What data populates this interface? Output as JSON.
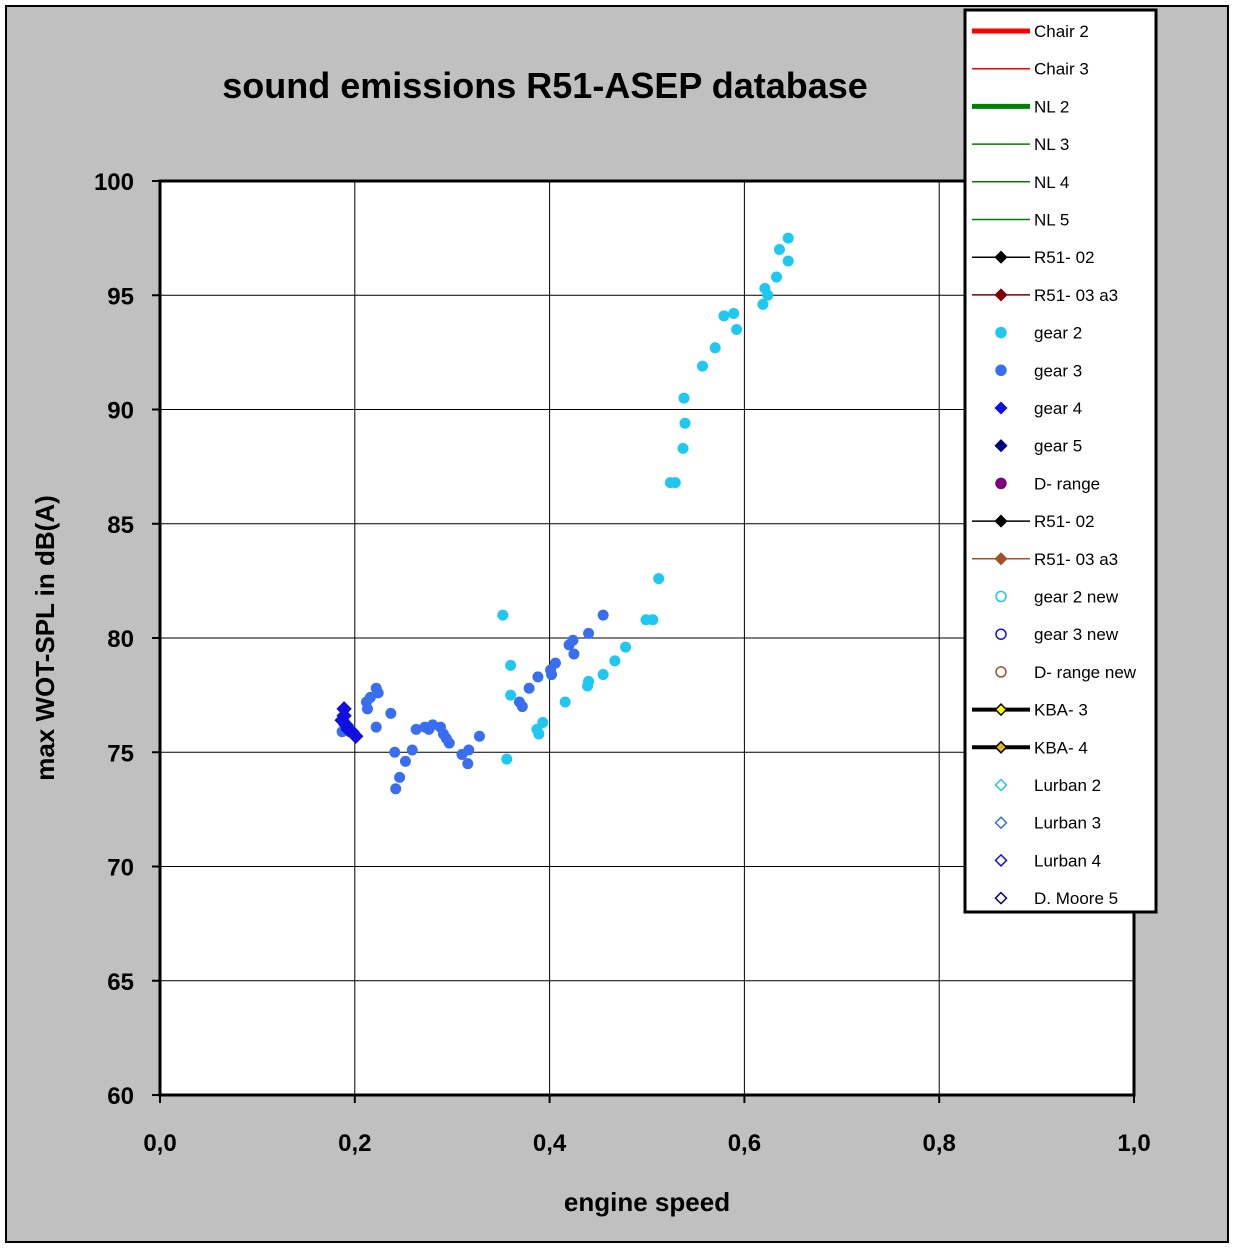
{
  "chart_data": {
    "type": "scatter",
    "title": "sound emissions R51-ASEP database",
    "xlabel": "engine speed",
    "ylabel": "max WOT-SPL in dB(A)",
    "xlim": [
      0,
      1
    ],
    "ylim": [
      60,
      100
    ],
    "x_ticks": [
      "0,0",
      "0,2",
      "0,4",
      "0,6",
      "0,8",
      "1,0"
    ],
    "x_tick_values": [
      0,
      0.2,
      0.4,
      0.6,
      0.8,
      1.0
    ],
    "y_ticks": [
      "60",
      "65",
      "70",
      "75",
      "80",
      "85",
      "90",
      "95",
      "100"
    ],
    "y_tick_values": [
      60,
      65,
      70,
      75,
      80,
      85,
      90,
      95,
      100
    ],
    "grid": true,
    "legend_position": "top-right",
    "colors": {
      "chart_background": "#c0c0c0",
      "plot_background": "#ffffff",
      "gear2": "#1ec8f0",
      "gear3": "#3a6ef0",
      "gear4": "#1010e0"
    },
    "legend": [
      {
        "label": "Chair 2",
        "kind": "line",
        "color": "#ff0000",
        "width": 5,
        "marker": "none"
      },
      {
        "label": "Chair 3",
        "kind": "line",
        "color": "#ff0000",
        "width": 1.5,
        "marker": "none"
      },
      {
        "label": "NL 2",
        "kind": "line",
        "color": "#008000",
        "width": 5,
        "marker": "none"
      },
      {
        "label": "NL 3",
        "kind": "line",
        "color": "#008000",
        "width": 1.5,
        "marker": "none"
      },
      {
        "label": "NL 4",
        "kind": "line",
        "color": "#008000",
        "width": 1.5,
        "marker": "none"
      },
      {
        "label": "NL 5",
        "kind": "line",
        "color": "#008000",
        "width": 1.5,
        "marker": "none"
      },
      {
        "label": "R51- 02",
        "kind": "line",
        "color": "#000000",
        "width": 1.5,
        "marker": "diamond",
        "marker_fill": "#000000",
        "marker_stroke": "#000000"
      },
      {
        "label": "R51- 03 a3",
        "kind": "line",
        "color": "#800000",
        "width": 1.5,
        "marker": "diamond",
        "marker_fill": "#800000",
        "marker_stroke": "#800000"
      },
      {
        "label": "gear 2",
        "kind": "marker",
        "marker": "circle",
        "marker_fill": "#1ec8f0",
        "marker_stroke": "#1ec8f0"
      },
      {
        "label": "gear 3",
        "kind": "marker",
        "marker": "circle",
        "marker_fill": "#3a6ef0",
        "marker_stroke": "#3a6ef0"
      },
      {
        "label": "gear 4",
        "kind": "marker",
        "marker": "diamond",
        "marker_fill": "#1010e0",
        "marker_stroke": "#1010e0"
      },
      {
        "label": "gear 5",
        "kind": "marker",
        "marker": "diamond",
        "marker_fill": "#000080",
        "marker_stroke": "#000080"
      },
      {
        "label": "D- range",
        "kind": "marker",
        "marker": "circle",
        "marker_fill": "#800080",
        "marker_stroke": "#800080"
      },
      {
        "label": "R51- 02",
        "kind": "line",
        "color": "#000000",
        "width": 1.5,
        "marker": "diamond",
        "marker_fill": "#000000",
        "marker_stroke": "#000000"
      },
      {
        "label": "R51- 03 a3",
        "kind": "line",
        "color": "#a0522d",
        "width": 1.5,
        "marker": "diamond",
        "marker_fill": "#a0522d",
        "marker_stroke": "#a0522d"
      },
      {
        "label": "gear 2 new",
        "kind": "marker",
        "marker": "open-circle",
        "marker_fill": "none",
        "marker_stroke": "#1ec8f0"
      },
      {
        "label": "gear 3 new",
        "kind": "marker",
        "marker": "open-circle",
        "marker_fill": "none",
        "marker_stroke": "#1010e0"
      },
      {
        "label": "D- range new",
        "kind": "marker",
        "marker": "open-circle",
        "marker_fill": "none",
        "marker_stroke": "#a0522d"
      },
      {
        "label": "KBA- 3",
        "kind": "line",
        "color": "#000000",
        "width": 4,
        "marker": "diamond",
        "marker_fill": "#ffff00",
        "marker_stroke": "#000000"
      },
      {
        "label": "KBA- 4",
        "kind": "line",
        "color": "#000000",
        "width": 4,
        "marker": "diamond",
        "marker_fill": "#e6b422",
        "marker_stroke": "#000000"
      },
      {
        "label": "Lurban 2",
        "kind": "marker",
        "marker": "open-diamond",
        "marker_fill": "none",
        "marker_stroke": "#1ec8f0"
      },
      {
        "label": "Lurban 3",
        "kind": "marker",
        "marker": "open-diamond",
        "marker_fill": "none",
        "marker_stroke": "#3a6ef0"
      },
      {
        "label": "Lurban 4",
        "kind": "marker",
        "marker": "open-diamond",
        "marker_fill": "none",
        "marker_stroke": "#1010e0"
      },
      {
        "label": "D. Moore 5",
        "kind": "marker",
        "marker": "open-diamond",
        "marker_fill": "none",
        "marker_stroke": "#000080"
      }
    ],
    "series": [
      {
        "name": "gear 2",
        "marker": "circle",
        "color": "#1ec8f0",
        "points": [
          [
            0.645,
            97.5
          ],
          [
            0.636,
            97.0
          ],
          [
            0.645,
            96.5
          ],
          [
            0.633,
            95.8
          ],
          [
            0.621,
            95.3
          ],
          [
            0.624,
            95.0
          ],
          [
            0.619,
            94.6
          ],
          [
            0.589,
            94.2
          ],
          [
            0.579,
            94.1
          ],
          [
            0.592,
            93.5
          ],
          [
            0.57,
            92.7
          ],
          [
            0.557,
            91.9
          ],
          [
            0.538,
            90.5
          ],
          [
            0.539,
            89.4
          ],
          [
            0.537,
            88.3
          ],
          [
            0.524,
            86.8
          ],
          [
            0.529,
            86.8
          ],
          [
            0.512,
            82.6
          ],
          [
            0.499,
            80.8
          ],
          [
            0.506,
            80.8
          ],
          [
            0.478,
            79.6
          ],
          [
            0.467,
            79.0
          ],
          [
            0.455,
            78.4
          ],
          [
            0.44,
            78.1
          ],
          [
            0.439,
            77.9
          ],
          [
            0.416,
            77.2
          ],
          [
            0.352,
            81.0
          ],
          [
            0.36,
            78.8
          ],
          [
            0.36,
            77.5
          ],
          [
            0.356,
            74.7
          ],
          [
            0.393,
            76.3
          ],
          [
            0.387,
            76.0
          ],
          [
            0.389,
            75.8
          ]
        ]
      },
      {
        "name": "gear 3",
        "marker": "circle",
        "color": "#3a6ef0",
        "points": [
          [
            0.455,
            81.0
          ],
          [
            0.44,
            80.2
          ],
          [
            0.424,
            79.9
          ],
          [
            0.42,
            79.7
          ],
          [
            0.425,
            79.3
          ],
          [
            0.406,
            78.9
          ],
          [
            0.401,
            78.6
          ],
          [
            0.402,
            78.4
          ],
          [
            0.388,
            78.3
          ],
          [
            0.379,
            77.8
          ],
          [
            0.369,
            77.2
          ],
          [
            0.372,
            77.0
          ],
          [
            0.328,
            75.7
          ],
          [
            0.317,
            75.1
          ],
          [
            0.31,
            74.9
          ],
          [
            0.316,
            74.5
          ],
          [
            0.222,
            77.8
          ],
          [
            0.224,
            77.6
          ],
          [
            0.216,
            77.4
          ],
          [
            0.212,
            77.2
          ],
          [
            0.213,
            76.9
          ],
          [
            0.237,
            76.7
          ],
          [
            0.222,
            76.1
          ],
          [
            0.28,
            76.2
          ],
          [
            0.272,
            76.1
          ],
          [
            0.288,
            76.1
          ],
          [
            0.263,
            76.0
          ],
          [
            0.276,
            76.0
          ],
          [
            0.291,
            75.8
          ],
          [
            0.294,
            75.6
          ],
          [
            0.297,
            75.4
          ],
          [
            0.241,
            75.0
          ],
          [
            0.259,
            75.1
          ],
          [
            0.252,
            74.6
          ],
          [
            0.246,
            73.9
          ],
          [
            0.242,
            73.4
          ],
          [
            0.187,
            75.9
          ]
        ]
      },
      {
        "name": "gear 4",
        "marker": "diamond",
        "color": "#1010e0",
        "points": [
          [
            0.189,
            76.9
          ],
          [
            0.189,
            76.6
          ],
          [
            0.187,
            76.4
          ],
          [
            0.191,
            76.2
          ],
          [
            0.193,
            76.0
          ],
          [
            0.197,
            75.9
          ],
          [
            0.201,
            75.7
          ]
        ]
      }
    ]
  }
}
